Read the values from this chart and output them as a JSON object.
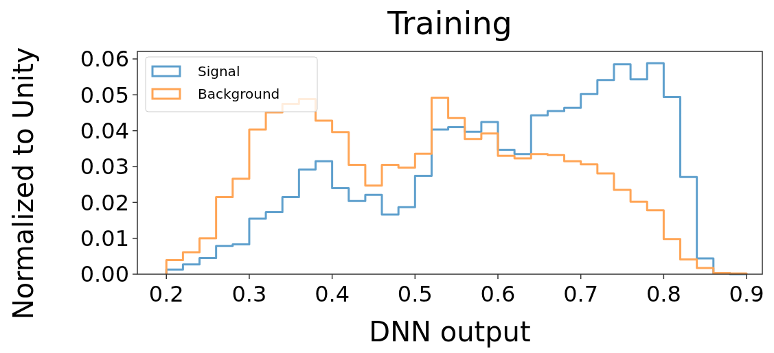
{
  "chart_data": {
    "type": "histogram",
    "title": "Training",
    "xlabel": "DNN output",
    "ylabel": "Normalized to Unity",
    "bins": [
      0.2,
      0.22,
      0.24,
      0.26,
      0.28,
      0.3,
      0.32,
      0.34,
      0.36,
      0.38,
      0.4,
      0.42,
      0.44,
      0.46,
      0.48,
      0.5,
      0.52,
      0.54,
      0.56,
      0.58,
      0.6,
      0.62,
      0.64,
      0.66,
      0.68,
      0.7,
      0.72,
      0.74,
      0.76,
      0.78,
      0.8,
      0.82,
      0.84,
      0.86,
      0.88,
      0.9
    ],
    "series": [
      {
        "name": "Signal",
        "color": "#5fa0cd",
        "values": [
          0.0013,
          0.0027,
          0.0045,
          0.0079,
          0.0083,
          0.0155,
          0.0173,
          0.0215,
          0.0292,
          0.0315,
          0.024,
          0.0204,
          0.0221,
          0.0166,
          0.0187,
          0.0274,
          0.0403,
          0.041,
          0.0397,
          0.0424,
          0.0347,
          0.0335,
          0.0443,
          0.0455,
          0.0464,
          0.0502,
          0.0541,
          0.0585,
          0.0543,
          0.0588,
          0.0494,
          0.0271,
          0.0044,
          0.0003,
          0.0
        ]
      },
      {
        "name": "Background",
        "color": "#ffa556",
        "values": [
          0.0039,
          0.0061,
          0.01,
          0.0215,
          0.0266,
          0.0403,
          0.0451,
          0.0475,
          0.0488,
          0.0428,
          0.0396,
          0.0305,
          0.0247,
          0.0305,
          0.0297,
          0.0336,
          0.0492,
          0.0435,
          0.0377,
          0.0392,
          0.033,
          0.0323,
          0.0335,
          0.0332,
          0.0315,
          0.0306,
          0.0281,
          0.0235,
          0.0202,
          0.0178,
          0.0098,
          0.0041,
          0.0017,
          0.0003,
          0.0002
        ]
      }
    ],
    "xlim": [
      0.165,
      0.919
    ],
    "ylim": [
      0,
      0.0621
    ],
    "xticks": [
      0.2,
      0.3,
      0.4,
      0.5,
      0.6,
      0.7,
      0.8,
      0.9
    ],
    "yticks": [
      {
        "value": 0,
        "label": "0.00"
      },
      {
        "value": 0.01,
        "label": "0.01"
      },
      {
        "value": 0.02,
        "label": "0.02"
      },
      {
        "value": 0.03,
        "label": "0.03"
      },
      {
        "value": 0.04,
        "label": "0.04"
      },
      {
        "value": 0.05,
        "label": "0.05"
      },
      {
        "value": 0.06,
        "label": "0.06"
      }
    ],
    "legend": "top left",
    "grid": false
  }
}
